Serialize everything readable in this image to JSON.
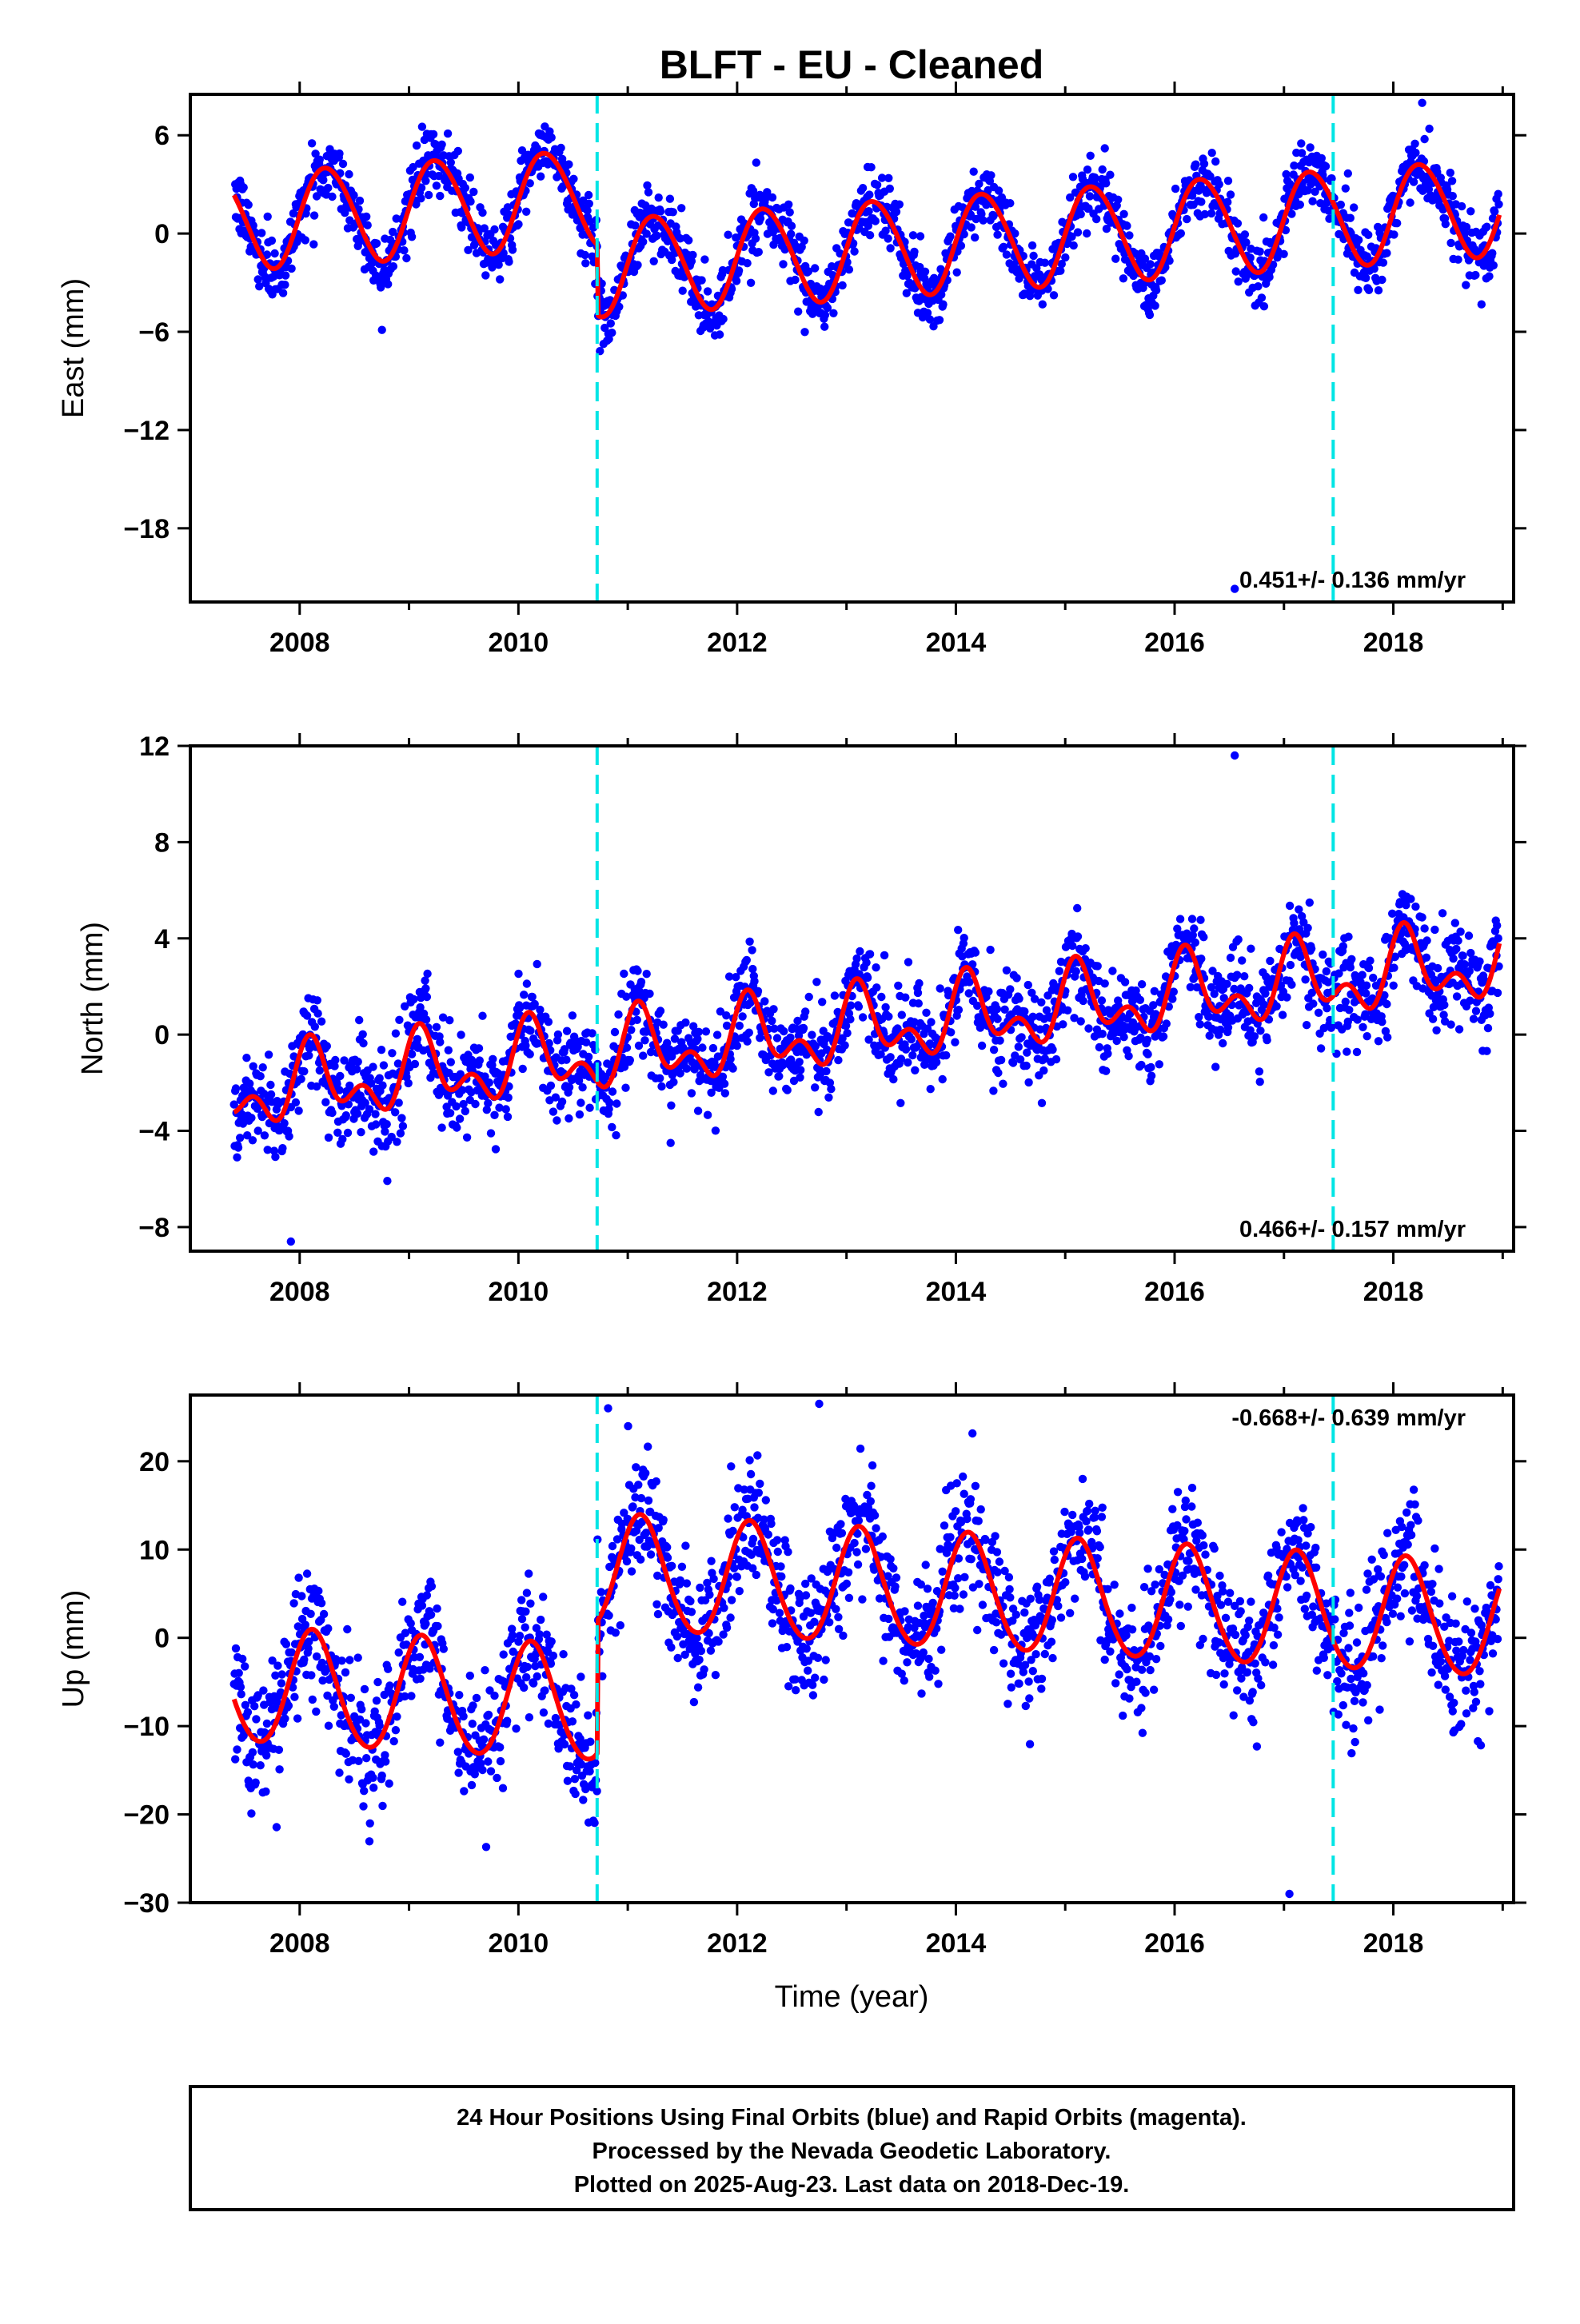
{
  "title": "BLFT  - EU - Cleaned",
  "xlabel": "Time (year)",
  "footer": {
    "line1": "24 Hour Positions Using Final Orbits (blue) and Rapid Orbits (magenta).",
    "line2": "Processed by the Nevada Geodetic Laboratory.",
    "line3": "Plotted on 2025-Aug-23. Last data on 2018-Dec-19."
  },
  "colors": {
    "data": "#0000ff",
    "model": "#ff0000",
    "steps": "#00e5e5",
    "frame": "#000000"
  },
  "chart_data": [
    {
      "type": "scatter",
      "id": "east",
      "ylabel": "East (mm)",
      "xlim": [
        2007.0,
        2019.1
      ],
      "ylim": [
        -22.5,
        8.5
      ],
      "yticks": [
        6,
        0,
        -6,
        -12,
        -18
      ],
      "xticks": [
        2008,
        2010,
        2012,
        2014,
        2016,
        2018
      ],
      "rate": "0.451+/- 0.136 mm/yr",
      "rate_position": "bottom-right",
      "steps": [
        2010.72,
        2017.45
      ],
      "data_start": 2007.4,
      "data_end": 2018.97,
      "model": {
        "offset": 0.75,
        "trend": 0.451,
        "annual_amp": 2.95,
        "annual_phase": 0.0,
        "semi_amp": 0.2,
        "step_sizes": [
          -4.3,
          0.0
        ]
      },
      "scatter": 1.0,
      "outliers": [
        [
          2016.55,
          -21.7
        ]
      ]
    },
    {
      "type": "scatter",
      "id": "north",
      "ylabel": "North (mm)",
      "xlim": [
        2007.0,
        2019.1
      ],
      "ylim": [
        -9.0,
        12.0
      ],
      "yticks": [
        12,
        8,
        4,
        0,
        -4,
        -8
      ],
      "xticks": [
        2008,
        2010,
        2012,
        2014,
        2016,
        2018
      ],
      "rate": "0.466+/- 0.157 mm/yr",
      "rate_position": "bottom-right",
      "steps": [
        2010.72,
        2017.45
      ],
      "data_start": 2007.4,
      "data_end": 2018.97,
      "model": {
        "offset": -2.4,
        "trend": 0.466,
        "annual_amp": 1.2,
        "annual_phase": 0.8,
        "semi_amp": 0.9,
        "step_sizes": [
          0.0,
          0.0
        ]
      },
      "scatter": 1.0,
      "outliers": [
        [
          2016.55,
          11.6
        ],
        [
          2007.92,
          -8.6
        ]
      ]
    },
    {
      "type": "scatter",
      "id": "up",
      "ylabel": "Up (mm)",
      "xlim": [
        2007.0,
        2019.1
      ],
      "ylim": [
        -30.0,
        27.5
      ],
      "yticks": [
        20,
        10,
        0,
        -10,
        -20,
        -30
      ],
      "xticks": [
        2008,
        2010,
        2012,
        2014,
        2016,
        2018
      ],
      "rate": "-0.668+/- 0.639 mm/yr",
      "rate_position": "top-right",
      "steps": [
        2010.72,
        2017.45
      ],
      "data_start": 2007.4,
      "data_end": 2018.97,
      "model": {
        "offset": -5.5,
        "trend": -0.668,
        "annual_amp": 6.5,
        "annual_phase": 0.8,
        "semi_amp": 0.5,
        "step_sizes": [
          15.0,
          0.0
        ]
      },
      "scatter": 3.5,
      "outliers": [
        [
          2017.05,
          -29.0
        ],
        [
          2010.82,
          26.0
        ],
        [
          2012.75,
          26.5
        ]
      ]
    }
  ]
}
